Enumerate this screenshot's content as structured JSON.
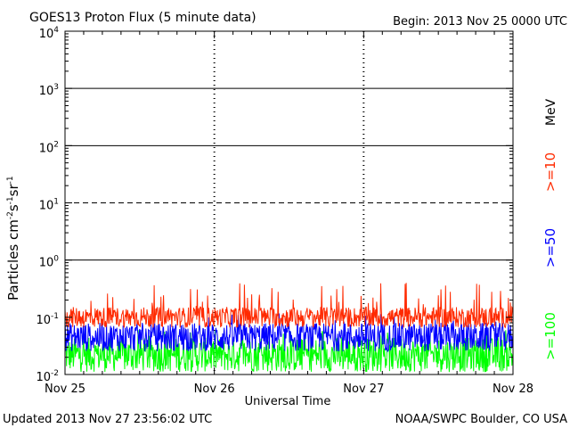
{
  "header": {
    "title": "GOES13 Proton Flux (5 minute data)",
    "begin": "Begin: 2013 Nov 25 0000 UTC"
  },
  "footer": {
    "updated": "Updated 2013 Nov 27 23:56:02 UTC",
    "credit": "NOAA/SWPC Boulder, CO USA"
  },
  "chart_data": {
    "type": "line",
    "title": "GOES13 Proton Flux (5 minute data)",
    "xlabel": "Universal Time",
    "ylabel_base": "Particles cm",
    "ylabel_units": [
      "-2",
      "s",
      "-1",
      "sr",
      "-1"
    ],
    "y_scale": "log",
    "ylim": [
      0.01,
      10000
    ],
    "y_ticks": [
      {
        "base": "10",
        "exp": "4"
      },
      {
        "base": "10",
        "exp": "3"
      },
      {
        "base": "10",
        "exp": "2"
      },
      {
        "base": "10",
        "exp": "1"
      },
      {
        "base": "10",
        "exp": "0"
      },
      {
        "base": "10",
        "exp": "-1"
      },
      {
        "base": "10",
        "exp": "-2"
      }
    ],
    "x_ticks": [
      "Nov 25",
      "Nov 26",
      "Nov 27",
      "Nov 28"
    ],
    "xlim_days": [
      0,
      3
    ],
    "thresholds": [
      {
        "value": 10,
        "style": "dashed"
      },
      {
        "value": 100,
        "style": "solid"
      },
      {
        "value": 1000,
        "style": "solid"
      }
    ],
    "grid": "horizontal decade lines",
    "legend_unit": "MeV",
    "series": [
      {
        "name": ">=10",
        "color": "#ff2a00",
        "baseline": 0.1,
        "spread": 0.18,
        "peak_max": 0.4
      },
      {
        "name": ">=50",
        "color": "#0000ff",
        "baseline": 0.045,
        "spread": 0.25,
        "peak_max": 0.12
      },
      {
        "name": ">=100",
        "color": "#00ff00",
        "baseline": 0.022,
        "spread": 0.3,
        "peak_max": 0.06
      }
    ]
  }
}
